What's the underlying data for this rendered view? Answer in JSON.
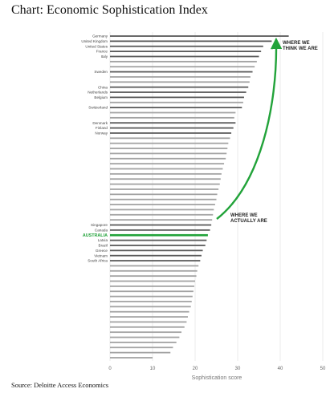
{
  "title": "Chart: Economic Sophistication Index",
  "source": "Source: Deloitte Access Economics",
  "colors": {
    "named_bar": "#5a5a5a",
    "unnamed_bar": "#a3a3a3",
    "highlight": "#22a33a",
    "grid": "#e6e6e6"
  },
  "chart_data": {
    "type": "bar",
    "orientation": "horizontal",
    "xlabel": "Sophistication score",
    "xlim": [
      0,
      50
    ],
    "xticks": [
      0,
      10,
      20,
      30,
      40,
      50
    ],
    "grid": true,
    "highlight": "AUSTRALIA",
    "annotations": [
      {
        "text": [
          "WHERE WE",
          "THINK WE ARE"
        ]
      },
      {
        "text": [
          "WHERE WE",
          "ACTUALLY ARE"
        ]
      }
    ],
    "categories": [
      "Germany",
      "United Kingdom",
      "United States",
      "France",
      "Italy",
      "",
      "",
      "Sweden",
      "",
      "",
      "China",
      "Netherlands",
      "Belgium",
      "",
      "Switzerland",
      "",
      "",
      "Denmark",
      "Finland",
      "Norway",
      "",
      "",
      "",
      "",
      "",
      "",
      "",
      "",
      "",
      "",
      "",
      "",
      "",
      "",
      "",
      "",
      "",
      "Singapore",
      "Canada",
      "AUSTRALIA",
      "Latvia",
      "Brazil",
      "Greece",
      "Vietnam",
      "South Africa",
      "",
      "",
      "",
      "",
      "",
      "",
      "",
      "",
      "",
      "",
      "",
      "",
      "",
      "",
      "",
      "",
      "",
      "",
      ""
    ],
    "values": [
      42,
      38,
      36,
      35.5,
      35,
      34.5,
      34,
      33.5,
      33,
      32.8,
      32.5,
      32,
      31.5,
      31.3,
      31,
      29.5,
      29.2,
      29.5,
      29,
      28.5,
      28.2,
      27.8,
      27.6,
      27.4,
      27.2,
      26.8,
      26.5,
      26.2,
      26,
      25.8,
      25.5,
      25.2,
      25,
      24.7,
      24.4,
      24.2,
      24,
      23.8,
      23.5,
      23,
      22.7,
      22.4,
      21.8,
      21.5,
      21.2,
      20.8,
      20.5,
      20.3,
      20,
      19.8,
      19.6,
      19.4,
      19.2,
      19,
      18.6,
      18.3,
      18,
      17.5,
      16.8,
      16.3,
      15.6,
      14.8,
      14.2,
      10
    ]
  }
}
